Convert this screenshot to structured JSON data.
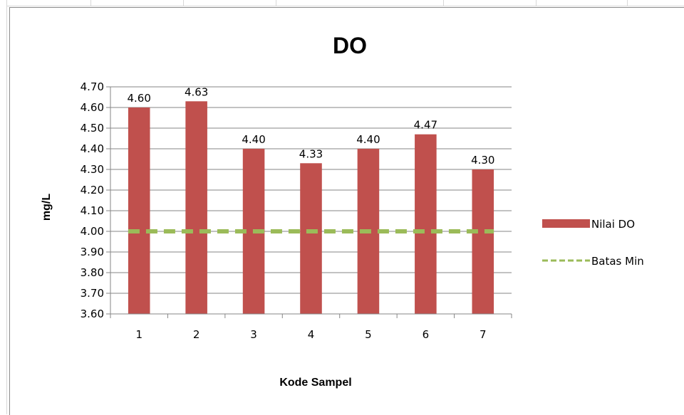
{
  "chart_data": {
    "type": "bar",
    "title": "DO",
    "xlabel": "Kode Sampel",
    "ylabel": "mg/L",
    "categories": [
      "1",
      "2",
      "3",
      "4",
      "5",
      "6",
      "7"
    ],
    "series": [
      {
        "name": "Nilai DO",
        "type": "bar",
        "values": [
          4.6,
          4.63,
          4.4,
          4.33,
          4.4,
          4.47,
          4.3
        ],
        "value_labels": [
          "4.60",
          "4.63",
          "4.40",
          "4.33",
          "4.40",
          "4.47",
          "4.30"
        ],
        "color": "#c0504d"
      },
      {
        "name": "Batas Min",
        "type": "line",
        "style": "dashed",
        "values": [
          4.0,
          4.0,
          4.0,
          4.0,
          4.0,
          4.0,
          4.0
        ],
        "color": "#9bbb59"
      }
    ],
    "ylim": [
      3.6,
      4.7
    ],
    "ytick_labels": [
      "3.60",
      "3.70",
      "3.80",
      "3.90",
      "4.00",
      "4.10",
      "4.20",
      "4.30",
      "4.40",
      "4.50",
      "4.60",
      "4.70"
    ],
    "grid": true,
    "legend_position": "right"
  }
}
